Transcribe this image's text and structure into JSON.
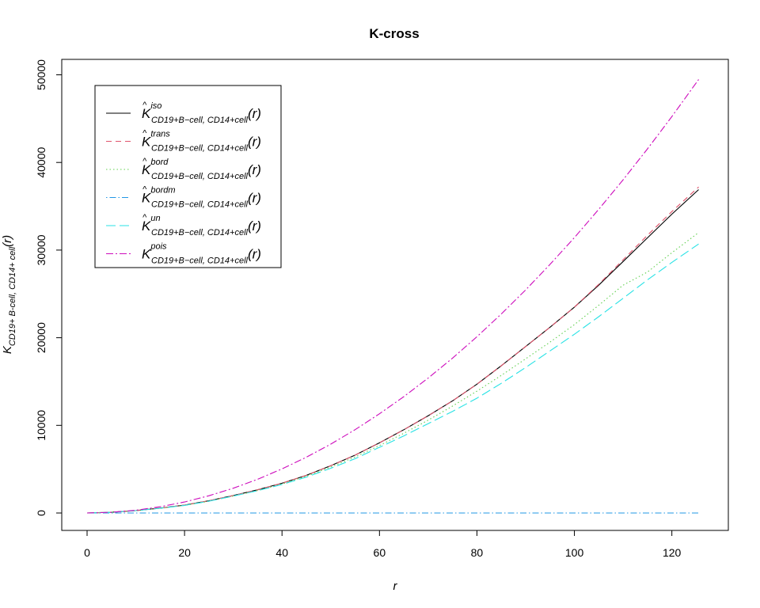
{
  "chart_data": {
    "type": "line",
    "title": "K-cross",
    "xlabel": "r",
    "ylabel": {
      "main": "K",
      "sub": "CD19+ B-cell, CD14+ cell",
      "arg": "(r)"
    },
    "xlim": [
      0,
      126
    ],
    "ylim": [
      0,
      50000
    ],
    "x_ticks": [
      0,
      20,
      40,
      60,
      80,
      100,
      120
    ],
    "y_ticks": [
      0,
      10000,
      20000,
      30000,
      40000,
      50000
    ],
    "grid": false,
    "legend_position": "top-left",
    "x": [
      0,
      5,
      10,
      15,
      20,
      25,
      30,
      35,
      40,
      45,
      50,
      55,
      60,
      65,
      70,
      75,
      80,
      85,
      90,
      95,
      100,
      105,
      110,
      115,
      120,
      125.5
    ],
    "series": [
      {
        "name": "K̂ iso CD19+B−cell, CD14+cell (r)",
        "legend": {
          "hat": true,
          "letter": "K",
          "sup": "iso",
          "sub": "CD19+B−cell, CD14+cell",
          "arg": "(r)"
        },
        "color": "#000000",
        "dash": "none",
        "values": [
          0,
          80,
          280,
          560,
          900,
          1400,
          2000,
          2650,
          3400,
          4300,
          5400,
          6600,
          8000,
          9500,
          11100,
          12800,
          14700,
          16800,
          19000,
          21200,
          23500,
          26000,
          28700,
          31400,
          34100,
          36900
        ]
      },
      {
        "name": "K̂ trans CD19+B−cell, CD14+cell (r)",
        "legend": {
          "hat": true,
          "letter": "K",
          "sup": "trans",
          "sub": "CD19+B−cell, CD14+cell",
          "arg": "(r)"
        },
        "color": "#DF536B",
        "dash": "7,5",
        "values": [
          0,
          80,
          280,
          560,
          900,
          1400,
          2000,
          2650,
          3400,
          4300,
          5400,
          6600,
          8000,
          9500,
          11100,
          12800,
          14700,
          16800,
          19000,
          21200,
          23500,
          26100,
          28900,
          31700,
          34400,
          37200
        ]
      },
      {
        "name": "K̂ bord CD19+B−cell, CD14+cell (r)",
        "legend": {
          "hat": true,
          "letter": "K",
          "sup": "bord",
          "sub": "CD19+B−cell, CD14+cell",
          "arg": "(r)"
        },
        "color": "#61D04F",
        "dash": "1.5,3",
        "values": [
          0,
          80,
          270,
          540,
          870,
          1350,
          1930,
          2570,
          3300,
          4200,
          5250,
          6400,
          7700,
          9100,
          10600,
          12200,
          13900,
          15700,
          17600,
          19500,
          21500,
          23700,
          26000,
          27500,
          29700,
          32000
        ]
      },
      {
        "name": "K̂ bordm CD19+B−cell, CD14+cell (r)",
        "legend": {
          "hat": true,
          "letter": "K",
          "sup": "bordm",
          "sub": "CD19+B−cell, CD14+cell",
          "arg": "(r)"
        },
        "color": "#2297E6",
        "dash": "1.5,3,8,3",
        "values": [
          0,
          0,
          0,
          0,
          0,
          0,
          0,
          0,
          0,
          0,
          0,
          0,
          0,
          0,
          0,
          0,
          0,
          0,
          0,
          0,
          0,
          0,
          0,
          0,
          0,
          0
        ]
      },
      {
        "name": "K̂ un CD19+B−cell, CD14+cell (r)",
        "legend": {
          "hat": true,
          "letter": "K",
          "sup": "un",
          "sub": "CD19+B−cell, CD14+cell",
          "arg": "(r)"
        },
        "color": "#28E2E5",
        "dash": "12,5",
        "values": [
          0,
          80,
          270,
          540,
          870,
          1350,
          1930,
          2550,
          3250,
          4100,
          5100,
          6200,
          7500,
          8800,
          10200,
          11600,
          13100,
          14800,
          16600,
          18500,
          20400,
          22400,
          24500,
          26600,
          28600,
          30700
        ]
      },
      {
        "name": "K pois CD19+B−cell, CD14+cell (r)",
        "legend": {
          "hat": false,
          "letter": "K",
          "sup": "pois",
          "sub": "CD19+B−cell, CD14+cell",
          "arg": "(r)"
        },
        "color": "#CD0BBC",
        "dash": "9,3,2,3",
        "values": [
          0,
          80,
          320,
          710,
          1260,
          1970,
          2830,
          3850,
          5030,
          6370,
          7860,
          9510,
          11320,
          13280,
          15400,
          17680,
          20110,
          22710,
          25460,
          28370,
          31430,
          34650,
          38020,
          41550,
          45240,
          49470
        ]
      }
    ]
  }
}
